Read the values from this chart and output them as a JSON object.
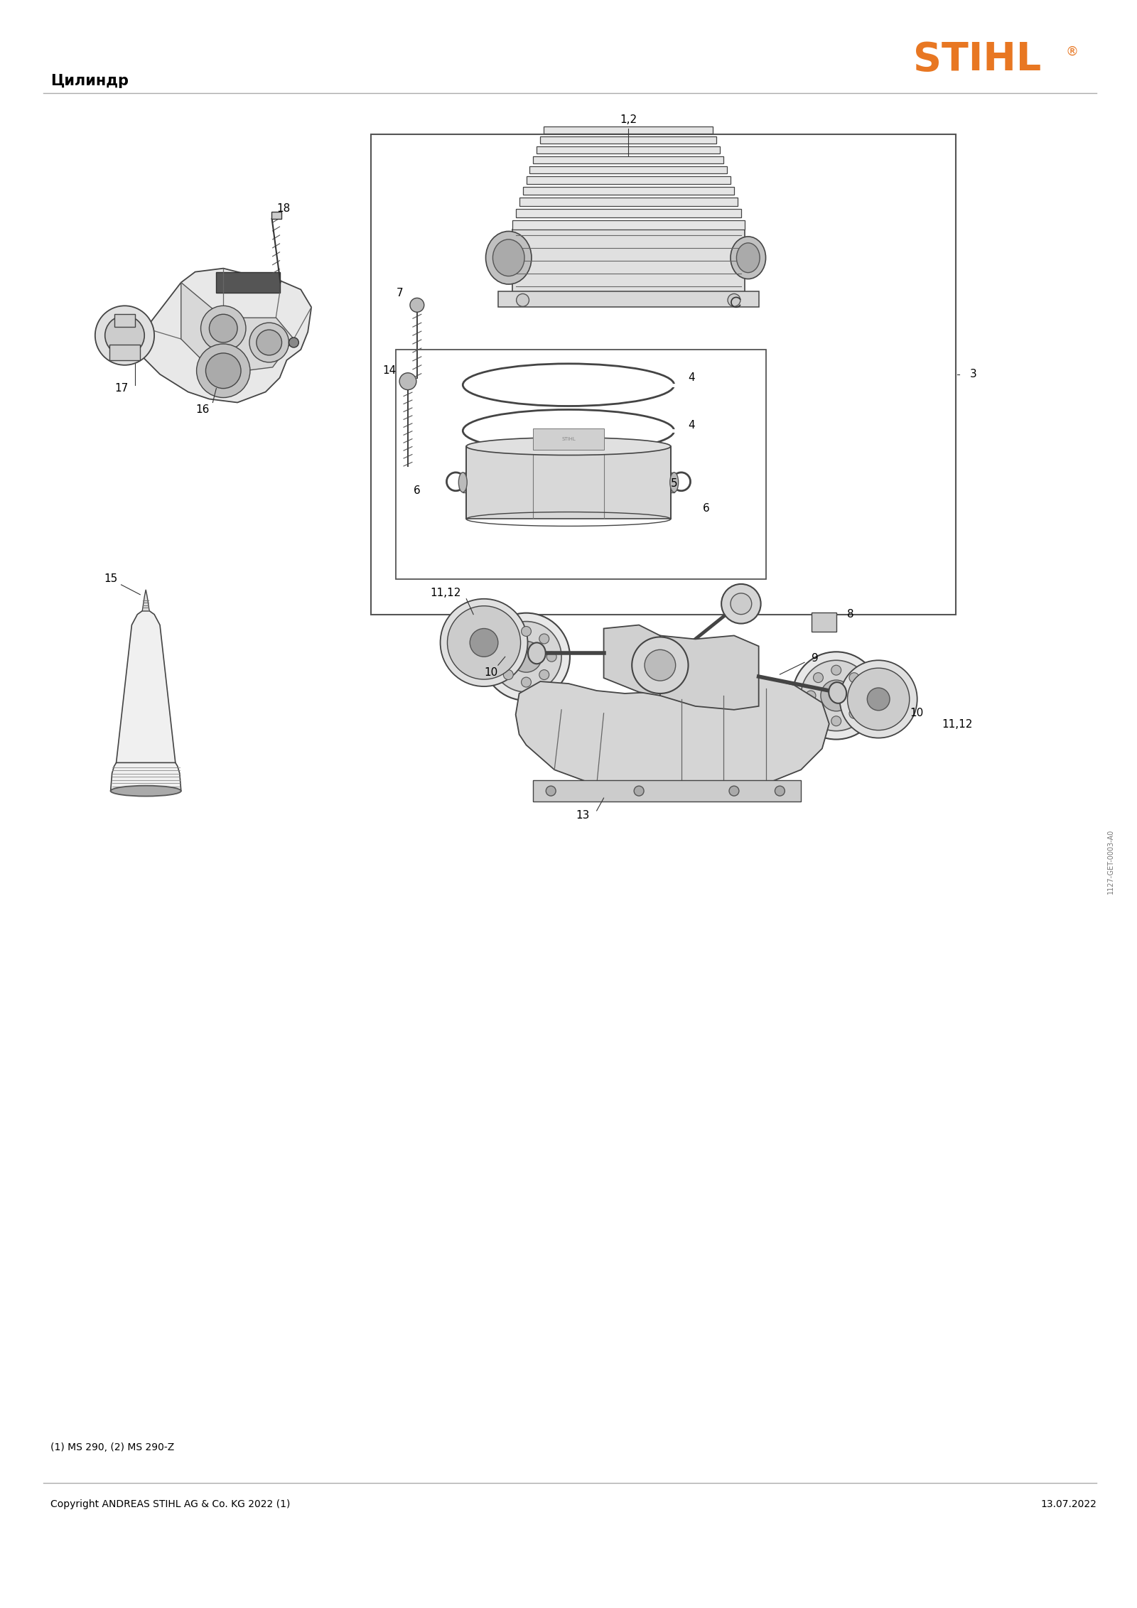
{
  "title": "Цилиндр",
  "logo_color": "#E87722",
  "background_color": "#ffffff",
  "header_line_color": "#aaaaaa",
  "footer_line_color": "#aaaaaa",
  "footer_left": "Copyright ANDREAS STIHL AG & Co. KG 2022 (1)",
  "footer_right": "13.07.2022",
  "footnote": "(1) MS 290, (2) MS 290-Z",
  "side_text": "1127-GET-0003-A0",
  "lc": "#333333",
  "lw": 1.2
}
